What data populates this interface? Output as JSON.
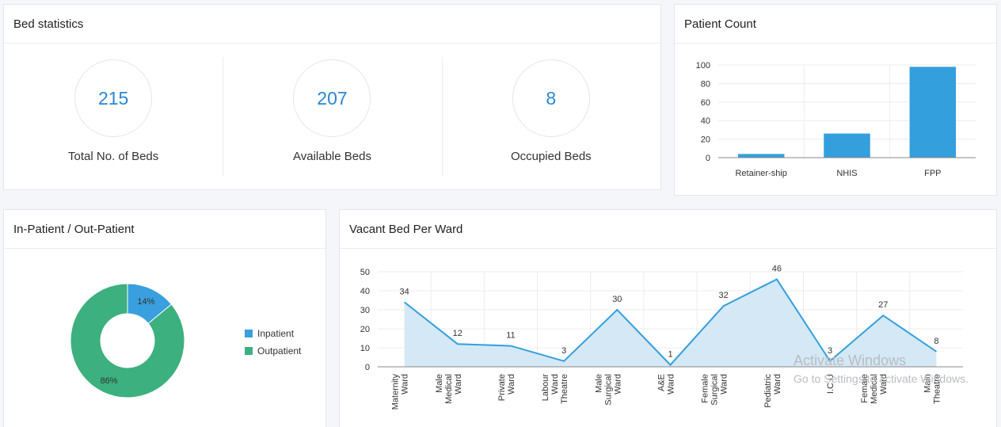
{
  "bed_statistics": {
    "title": "Bed statistics",
    "stats": [
      {
        "value": "215",
        "label": "Total No. of Beds"
      },
      {
        "value": "207",
        "label": "Available Beds"
      },
      {
        "value": "8",
        "label": "Occupied Beds"
      }
    ]
  },
  "patient_count": {
    "title": "Patient Count"
  },
  "in_out_patient": {
    "title": "In-Patient / Out-Patient",
    "legend": [
      {
        "label": "Inpatient",
        "color": "#3a9fde"
      },
      {
        "label": "Outpatient",
        "color": "#3cb07e"
      }
    ]
  },
  "vacant_bed": {
    "title": "Vacant Bed Per Ward"
  },
  "watermark": {
    "title": "Activate Windows",
    "subtitle": "Go to Settings to activate Windows."
  },
  "chart_data": [
    {
      "type": "bar",
      "title": "Patient Count",
      "categories": [
        "Retainer-ship",
        "NHIS",
        "FPP"
      ],
      "values": [
        4,
        26,
        98
      ],
      "ylim": [
        0,
        100
      ],
      "yticks": [
        0,
        20,
        40,
        60,
        80,
        100
      ],
      "color": "#349fdd",
      "grid": true
    },
    {
      "type": "pie",
      "title": "In-Patient / Out-Patient",
      "donut": true,
      "labels": [
        "Inpatient",
        "Outpatient"
      ],
      "values": [
        14,
        86
      ],
      "value_labels": [
        "14%",
        "86%"
      ],
      "colors": [
        "#3a9fde",
        "#3cb07e"
      ],
      "legend": "right"
    },
    {
      "type": "area",
      "title": "Vacant Bed Per Ward",
      "categories": [
        [
          "Maternity",
          "Ward"
        ],
        [
          "Male",
          "Medical",
          "Ward"
        ],
        [
          "Private",
          "Ward"
        ],
        [
          "Labour",
          "Ward",
          "Theatre"
        ],
        [
          "Male",
          "Surgical",
          "Ward"
        ],
        [
          "A&E",
          "Ward"
        ],
        [
          "Female",
          "Surgical",
          "Ward"
        ],
        [
          "Pediatric",
          "Ward"
        ],
        [
          "I.C.U"
        ],
        [
          "Female",
          "Medical",
          "Ward"
        ],
        [
          "Main",
          "Theatre"
        ]
      ],
      "values": [
        34,
        12,
        11,
        3,
        30,
        1,
        32,
        46,
        3,
        27,
        8
      ],
      "ylim": [
        0,
        50
      ],
      "yticks": [
        0,
        10,
        20,
        30,
        40,
        50
      ],
      "line_color": "#349fdd",
      "fill_color": "#d4e8f6",
      "grid": true
    }
  ]
}
